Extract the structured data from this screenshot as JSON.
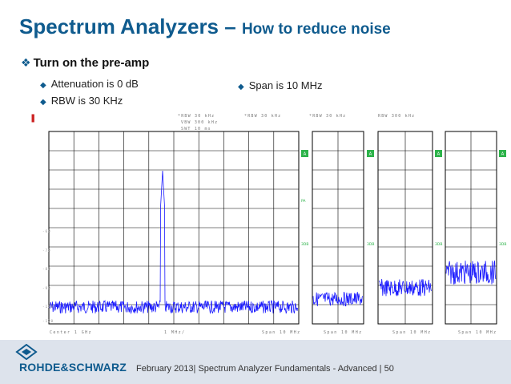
{
  "slide": {
    "title_main": "Spectrum Analyzers – ",
    "title_sub": "How to reduce noise",
    "bullet": "Turn on the pre-amp",
    "sub_bullets_left": [
      "Attenuation is 0 dB",
      "RBW is 30 KHz"
    ],
    "sub_bullet_right": "Span is 10 MHz"
  },
  "screenshot": {
    "rbw_labels": [
      "*RBW 30 kHz",
      "*RBW 30 kHz",
      "*RBW 30 kHz",
      "RBW 300 kHz"
    ],
    "main_settings": [
      "VBW 300 kHz",
      "SWT 10 ms"
    ],
    "marker_labels": [
      "A",
      "A",
      "A",
      "A"
    ],
    "ref_label": "PA",
    "level_label": "3DB",
    "main_ylabels": [
      "-60",
      "-70",
      "-80",
      "-90",
      "-100",
      "-110",
      "-120"
    ],
    "main_xlabels": [
      "Center 1 GHz",
      "1 MHz/",
      "Span 10 MHz"
    ],
    "small_xlabel": "Span 10 MHz",
    "colors": {
      "trace": "#1a1aff",
      "marker": "#2db34a",
      "title": "#0f5b8e"
    }
  },
  "footer": {
    "logo": "ROHDE&SCHWARZ",
    "text": "February 2013| Spectrum Analyzer Fundamentals - Advanced | 50"
  }
}
